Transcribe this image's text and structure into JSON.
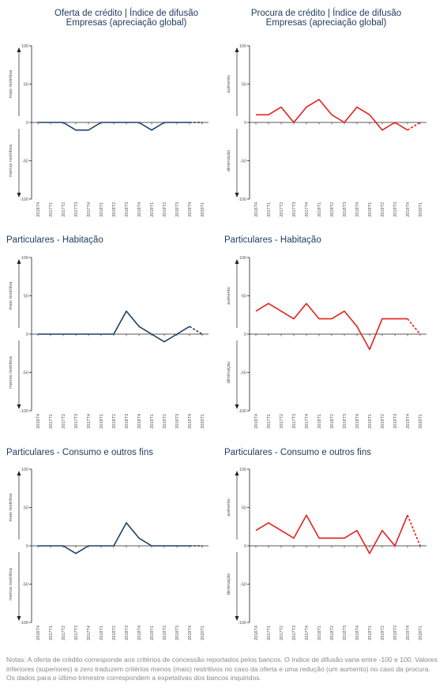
{
  "colors": {
    "offer": "#1e3f66",
    "demand": "#e3211c",
    "axis": "#222222",
    "text": "#1e3a5f"
  },
  "panels": [
    {
      "title": [
        "Oferta de crédito | Índice de difusão",
        "Empresas (apreciação global)"
      ],
      "kind": "offer"
    },
    {
      "title": [
        "Procura de crédito | Índice de difusão",
        "Empresas (apreciação global)"
      ],
      "kind": "demand"
    },
    {
      "title": [
        "Particulares - Habitação"
      ],
      "kind": "offer"
    },
    {
      "title": [
        "Particulares - Habitação"
      ],
      "kind": "demand"
    },
    {
      "title": [
        "Particulares - Consumo e outros fins"
      ],
      "kind": "offer"
    },
    {
      "title": [
        "Particulares - Consumo e outros fins"
      ],
      "kind": "demand"
    }
  ],
  "labels": {
    "offer_up": "mais restritiva",
    "offer_down": "menos restritiva",
    "demand_up": "aumento",
    "demand_down": "diminuição"
  },
  "chart_data": [
    {
      "type": "line",
      "categories": [
        "2016T4",
        "2017T1",
        "2017T2",
        "2017T3",
        "2017T4",
        "2018T1",
        "2018T2",
        "2018T3",
        "2018T4",
        "2019T1",
        "2019T2",
        "2019T3",
        "2019T4",
        "2020T1"
      ],
      "values": [
        0,
        0,
        0,
        -10,
        -10,
        0,
        0,
        0,
        0,
        -10,
        0,
        0,
        0,
        0
      ],
      "dashed_from_index": 12,
      "ylim": [
        -100,
        100
      ],
      "yticks": [
        100,
        50,
        0,
        -50,
        -100
      ]
    },
    {
      "type": "line",
      "categories": [
        "2016T4",
        "2017T1",
        "2017T2",
        "2017T3",
        "2017T4",
        "2018T1",
        "2018T2",
        "2018T3",
        "2018T4",
        "2019T1",
        "2019T2",
        "2019T3",
        "2019T4",
        "2020T1"
      ],
      "values": [
        10,
        10,
        20,
        0,
        20,
        30,
        10,
        0,
        20,
        10,
        -10,
        0,
        -10,
        0
      ],
      "dashed_from_index": 12,
      "ylim": [
        -100,
        100
      ],
      "yticks": [
        100,
        50,
        0,
        -50,
        -100
      ]
    },
    {
      "type": "line",
      "categories": [
        "2016T4",
        "2017T1",
        "2017T2",
        "2017T3",
        "2017T4",
        "2018T1",
        "2018T2",
        "2018T3",
        "2018T4",
        "2019T1",
        "2019T2",
        "2019T3",
        "2019T4",
        "2020T1"
      ],
      "values": [
        0,
        0,
        0,
        0,
        0,
        0,
        0,
        30,
        10,
        0,
        -10,
        0,
        10,
        0
      ],
      "dashed_from_index": 12,
      "ylim": [
        -100,
        100
      ],
      "yticks": [
        100,
        50,
        0,
        -50,
        -100
      ]
    },
    {
      "type": "line",
      "categories": [
        "2016T4",
        "2017T1",
        "2017T2",
        "2017T3",
        "2017T4",
        "2018T1",
        "2018T2",
        "2018T3",
        "2018T4",
        "2019T1",
        "2019T2",
        "2019T3",
        "2019T4",
        "2020T1"
      ],
      "values": [
        30,
        40,
        30,
        20,
        40,
        20,
        20,
        30,
        10,
        -20,
        20,
        20,
        20,
        0
      ],
      "dashed_from_index": 12,
      "ylim": [
        -100,
        100
      ],
      "yticks": [
        100,
        50,
        0,
        -50,
        -100
      ]
    },
    {
      "type": "line",
      "categories": [
        "2016T4",
        "2017T1",
        "2017T2",
        "2017T3",
        "2017T4",
        "2018T1",
        "2018T2",
        "2018T3",
        "2018T4",
        "2019T1",
        "2019T2",
        "2019T3",
        "2019T4",
        "2020T1"
      ],
      "values": [
        0,
        0,
        0,
        -10,
        0,
        0,
        0,
        30,
        10,
        0,
        0,
        0,
        0,
        0
      ],
      "dashed_from_index": 12,
      "ylim": [
        -100,
        100
      ],
      "yticks": [
        100,
        50,
        0,
        -50,
        -100
      ]
    },
    {
      "type": "line",
      "categories": [
        "2016T4",
        "2017T1",
        "2017T2",
        "2017T3",
        "2017T4",
        "2018T1",
        "2018T2",
        "2018T3",
        "2018T4",
        "2019T1",
        "2019T2",
        "2019T3",
        "2019T4",
        "2020T1"
      ],
      "values": [
        20,
        30,
        20,
        10,
        40,
        10,
        10,
        10,
        20,
        -10,
        20,
        0,
        40,
        0
      ],
      "dashed_from_index": 12,
      "ylim": [
        -100,
        100
      ],
      "yticks": [
        100,
        50,
        0,
        -50,
        -100
      ]
    }
  ],
  "notes": "Notas: A oferta de crédito corresponde aos critérios de concessão reportados pelos bancos. O índice de difusão varia entre -100 e 100. Valores inferiores (superiores) a zero traduzem critérios menos (mais) restritivos no caso da oferta e uma redução (um aumento) no caso da procura. Os dados para o último trimestre correspondem a expetativas dos bancos inquiridos."
}
